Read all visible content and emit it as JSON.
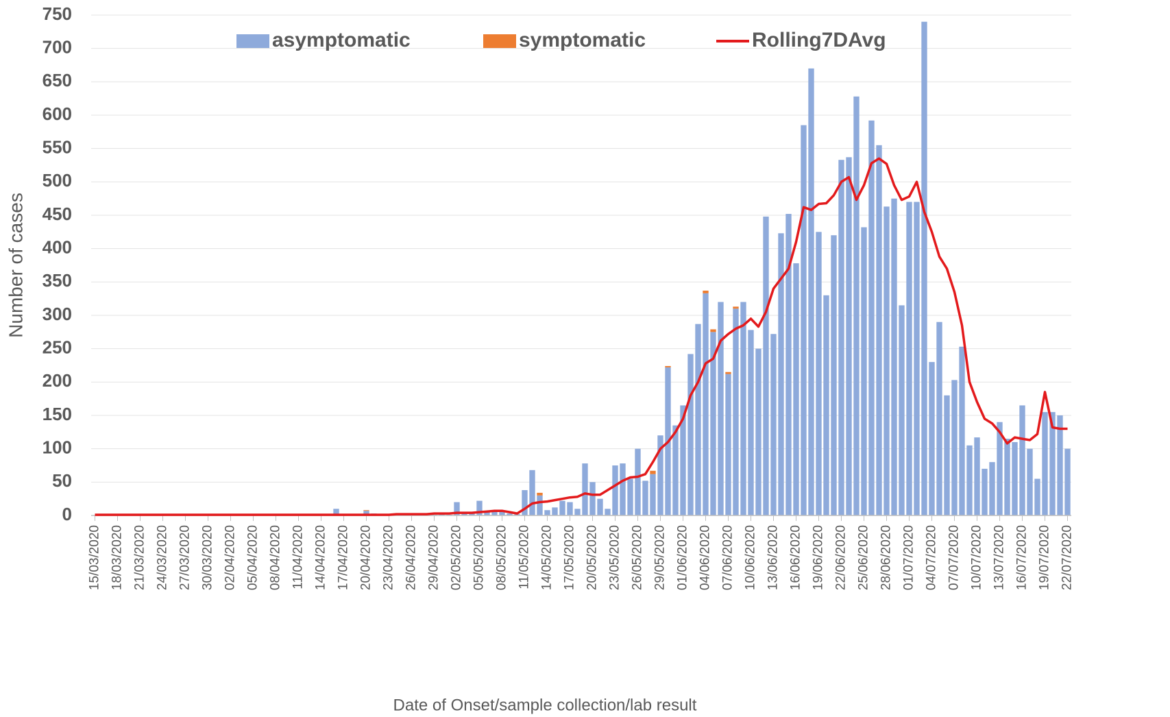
{
  "chart_data": {
    "type": "bar",
    "x_label": "Date of Onset/sample collection/lab result",
    "y_label": "Number of cases",
    "categories": [
      "15/03/2020",
      null,
      null,
      "18/03/2020",
      null,
      null,
      "21/03/2020",
      null,
      null,
      "24/03/2020",
      null,
      null,
      "27/03/2020",
      null,
      null,
      "30/03/2020",
      null,
      null,
      "02/04/2020",
      null,
      null,
      "05/04/2020",
      null,
      null,
      "08/04/2020",
      null,
      null,
      "11/04/2020",
      null,
      null,
      "14/04/2020",
      null,
      null,
      "17/04/2020",
      null,
      null,
      "20/04/2020",
      null,
      null,
      "23/04/2020",
      null,
      null,
      "26/04/2020",
      null,
      null,
      "29/04/2020",
      null,
      null,
      "02/05/2020",
      null,
      null,
      "05/05/2020",
      null,
      null,
      "08/05/2020",
      null,
      null,
      "11/05/2020",
      null,
      null,
      "14/05/2020",
      null,
      null,
      "17/05/2020",
      null,
      null,
      "20/05/2020",
      null,
      null,
      "23/05/2020",
      null,
      null,
      "26/05/2020",
      null,
      null,
      "29/05/2020",
      null,
      null,
      "01/06/2020",
      null,
      null,
      "04/06/2020",
      null,
      null,
      "07/06/2020",
      null,
      null,
      "10/06/2020",
      null,
      null,
      "13/06/2020",
      null,
      null,
      "16/06/2020",
      null,
      null,
      "19/06/2020",
      null,
      null,
      "22/06/2020",
      null,
      null,
      "25/06/2020",
      null,
      null,
      "28/06/2020",
      null,
      null,
      "01/07/2020",
      null,
      null,
      "04/07/2020",
      null,
      null,
      "07/07/2020",
      null,
      null,
      "10/07/2020",
      null,
      null,
      "13/07/2020",
      null,
      null,
      "16/07/2020",
      null,
      null,
      "19/07/2020",
      null,
      null,
      "22/07/2020"
    ],
    "series": [
      {
        "name": "asymptomatic",
        "color": "#8eaadb",
        "values": [
          0,
          1,
          0,
          0,
          1,
          0,
          0,
          0,
          1,
          2,
          1,
          0,
          0,
          0,
          0,
          1,
          0,
          0,
          0,
          1,
          2,
          1,
          0,
          0,
          1,
          1,
          0,
          0,
          1,
          1,
          2,
          1,
          10,
          1,
          2,
          1,
          7,
          3,
          2,
          1,
          2,
          3,
          2,
          1,
          2,
          1,
          2,
          1,
          20,
          3,
          4,
          22,
          6,
          8,
          7,
          3,
          2,
          38,
          68,
          30,
          8,
          12,
          22,
          20,
          10,
          78,
          50,
          25,
          10,
          75,
          78,
          55,
          100,
          52,
          62,
          120,
          222,
          135,
          165,
          242,
          287,
          333,
          275,
          320,
          212,
          310,
          320,
          278,
          250,
          448,
          272,
          423,
          452,
          378,
          585,
          670,
          425,
          330,
          420,
          533,
          537,
          628,
          432,
          592,
          555,
          463,
          475,
          315,
          470,
          470,
          740,
          230,
          290,
          180,
          203,
          253,
          105,
          117,
          70,
          80,
          140,
          115,
          110,
          165,
          100,
          55,
          155,
          155,
          150,
          100
        ]
      },
      {
        "name": "symptomatic",
        "color": "#ed7d31",
        "values": [
          0,
          0,
          0,
          0,
          0,
          0,
          0,
          0,
          0,
          0,
          0,
          0,
          0,
          0,
          0,
          0,
          0,
          0,
          0,
          0,
          0,
          0,
          0,
          0,
          0,
          0,
          0,
          0,
          0,
          0,
          0,
          0,
          0,
          0,
          0,
          0,
          1,
          0,
          0,
          0,
          0,
          0,
          0,
          0,
          0,
          0,
          0,
          0,
          0,
          0,
          0,
          0,
          0,
          0,
          0,
          0,
          0,
          0,
          0,
          4,
          0,
          0,
          0,
          0,
          0,
          0,
          0,
          0,
          0,
          0,
          0,
          0,
          0,
          0,
          5,
          0,
          2,
          0,
          0,
          0,
          0,
          4,
          4,
          0,
          3,
          3,
          0,
          0,
          0,
          0,
          0,
          0,
          0,
          0,
          0,
          0,
          0,
          0,
          0,
          0,
          0,
          0,
          0,
          0,
          0,
          0,
          0,
          0,
          0,
          0,
          0,
          0,
          0,
          0,
          0,
          0,
          0,
          0,
          0,
          0,
          0,
          0,
          0,
          0,
          0,
          0,
          0,
          0,
          0,
          0
        ]
      },
      {
        "name": "Rolling7DAvg",
        "color": "#e31a1c",
        "type": "line",
        "values": [
          1,
          1,
          1,
          1,
          1,
          1,
          1,
          1,
          1,
          1,
          1,
          1,
          1,
          1,
          1,
          1,
          1,
          1,
          1,
          1,
          1,
          1,
          1,
          1,
          1,
          1,
          1,
          1,
          1,
          1,
          1,
          1,
          1,
          1,
          1,
          1,
          1,
          1,
          1,
          1,
          2,
          2,
          2,
          2,
          2,
          3,
          3,
          3,
          4,
          4,
          4,
          5,
          6,
          7,
          7,
          5,
          3,
          10,
          18,
          20,
          21,
          23,
          25,
          27,
          28,
          33,
          31,
          31,
          38,
          45,
          52,
          57,
          58,
          62,
          80,
          100,
          110,
          125,
          145,
          180,
          200,
          228,
          235,
          262,
          272,
          280,
          285,
          295,
          283,
          305,
          340,
          355,
          370,
          410,
          462,
          458,
          467,
          468,
          480,
          500,
          507,
          473,
          495,
          528,
          535,
          527,
          495,
          473,
          478,
          500,
          455,
          425,
          388,
          370,
          335,
          285,
          200,
          170,
          145,
          138,
          125,
          108,
          117,
          115,
          113,
          122,
          185,
          132,
          130,
          130
        ]
      }
    ],
    "ylim": [
      0,
      750
    ],
    "yticks": [
      0,
      50,
      100,
      150,
      200,
      250,
      300,
      350,
      400,
      450,
      500,
      550,
      600,
      650,
      700,
      750
    ],
    "grid": true,
    "legend": "top"
  }
}
